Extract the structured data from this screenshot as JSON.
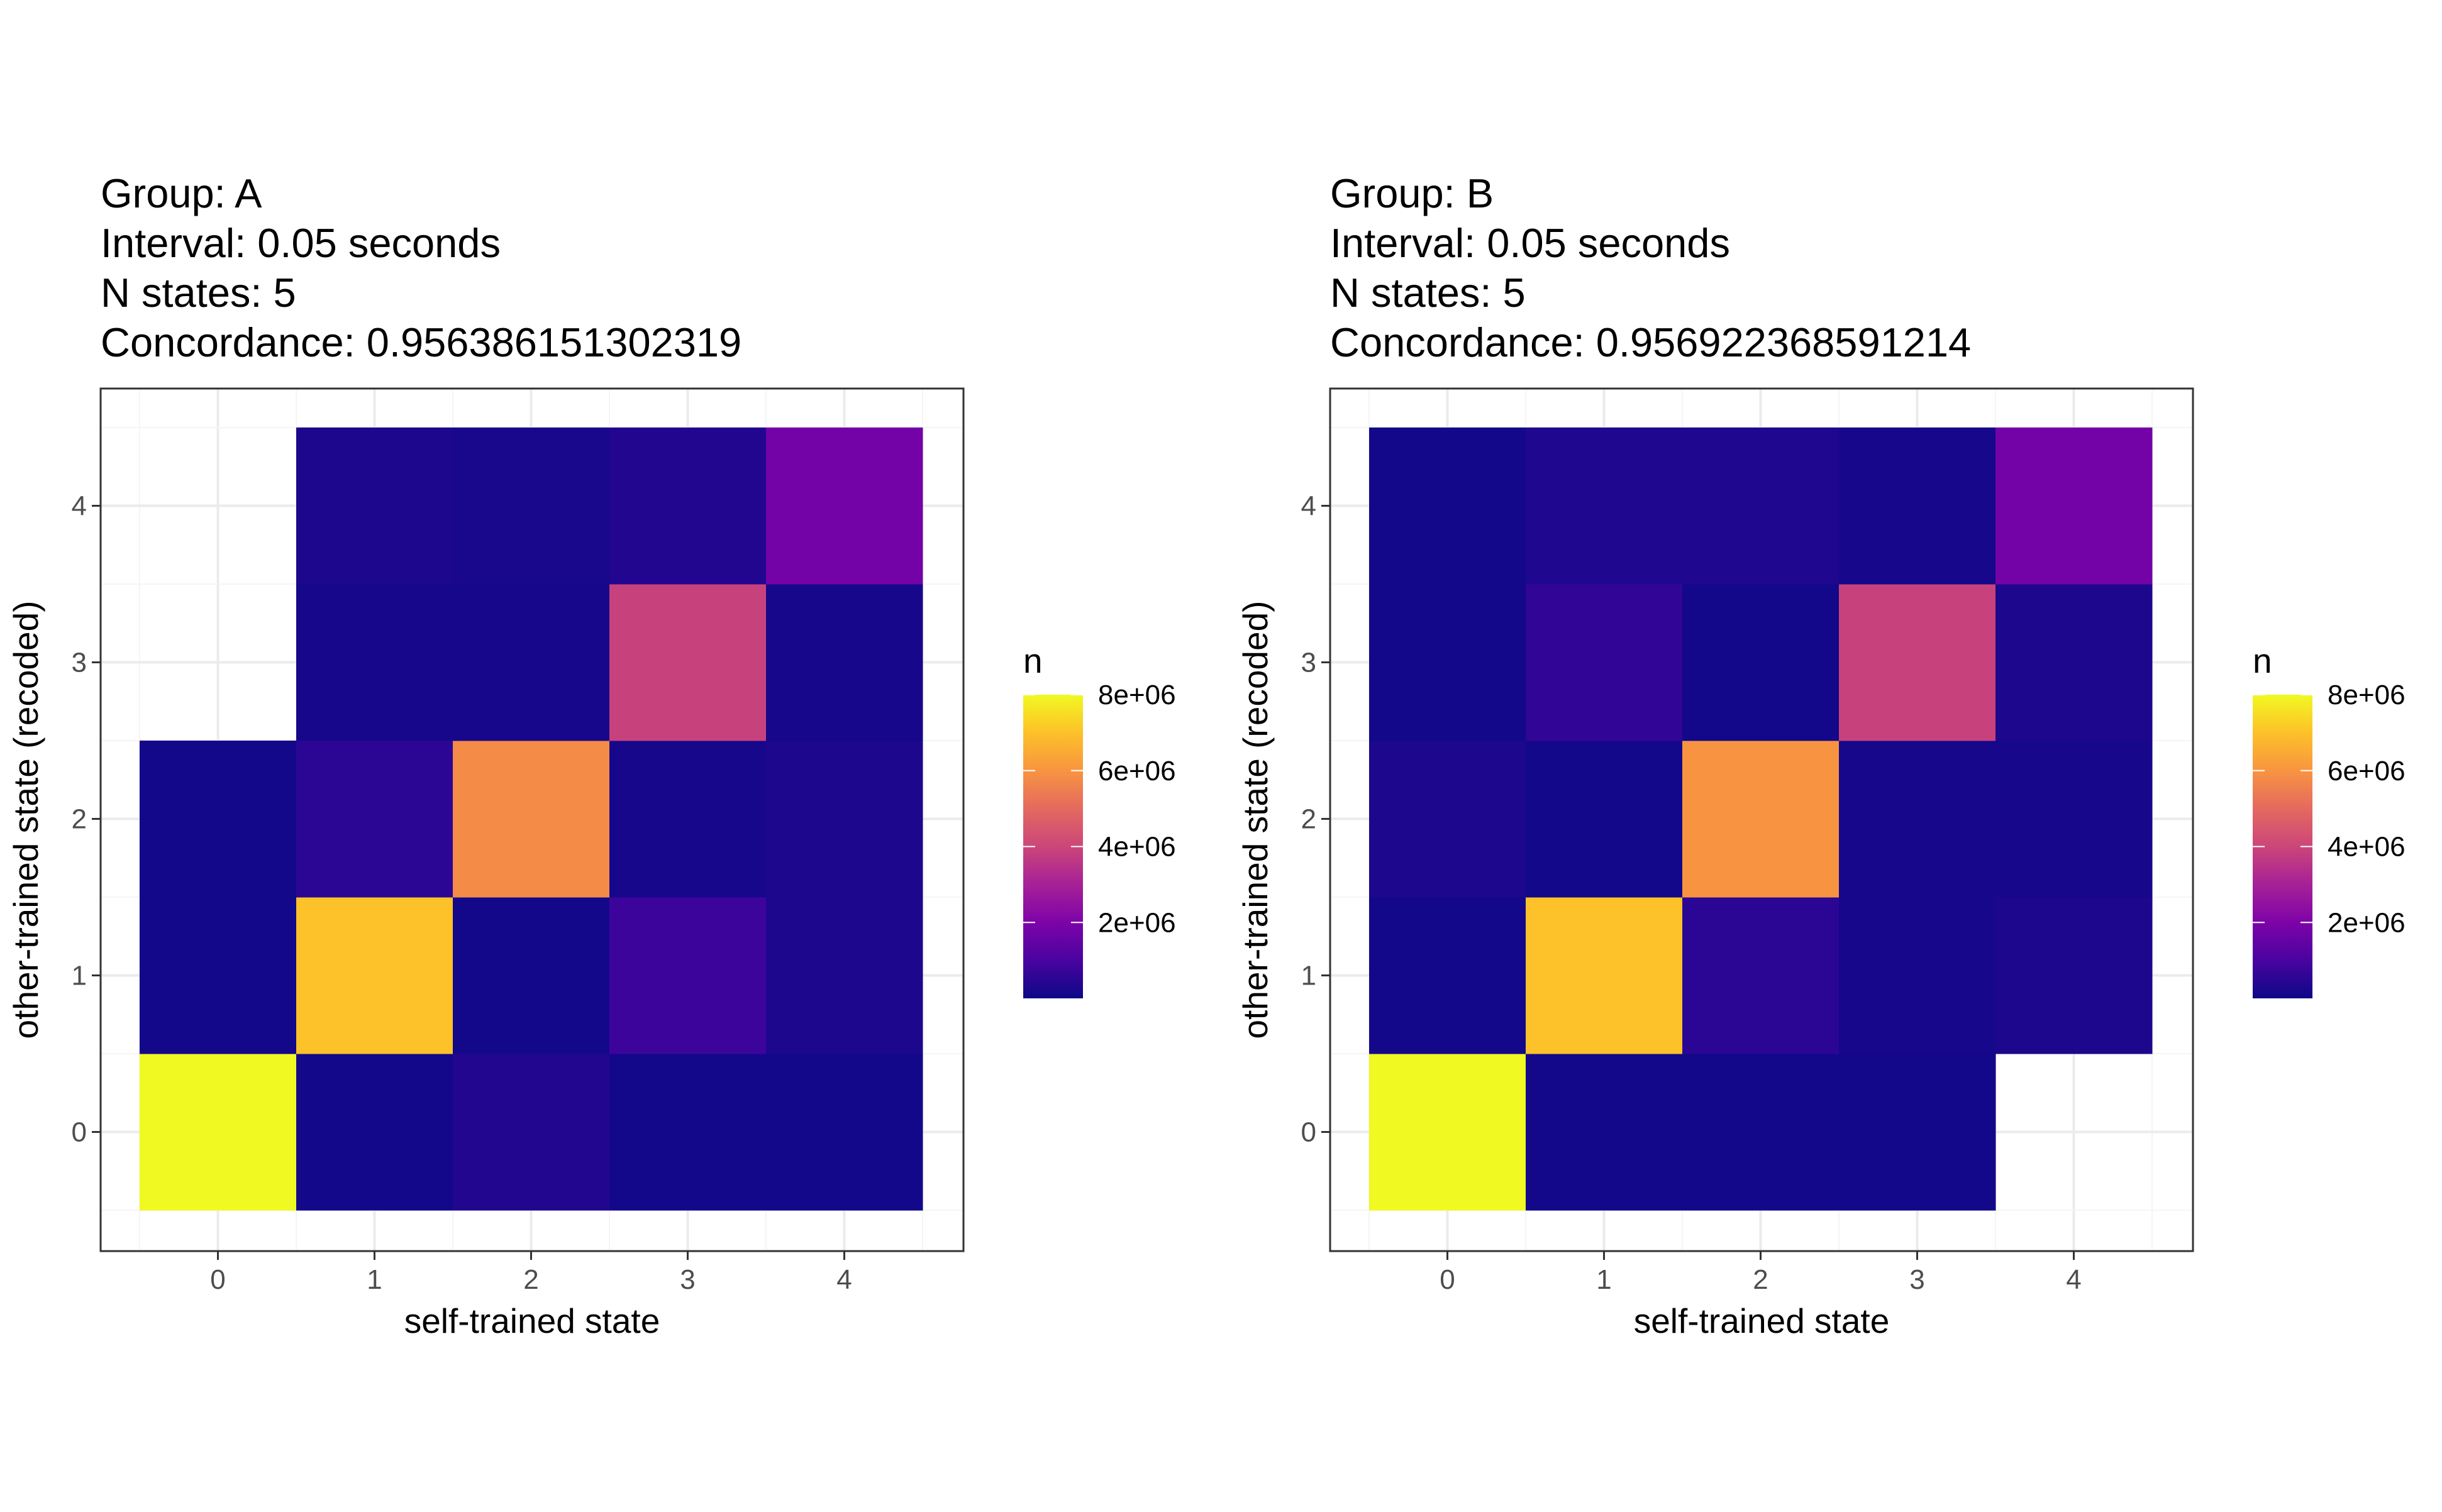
{
  "chart_data": [
    {
      "type": "heatmap",
      "title_lines": [
        "Group: A",
        "Interval: 0.05 seconds",
        "N states: 5",
        "Concordance: 0.956386151302319"
      ],
      "xlabel": "self-trained state",
      "ylabel": "other-trained state (recoded)",
      "x_categories": [
        "0",
        "1",
        "2",
        "3",
        "4"
      ],
      "y_categories": [
        "0",
        "1",
        "2",
        "3",
        "4"
      ],
      "cells": [
        {
          "x": 0,
          "y": 0,
          "n": 8000000
        },
        {
          "x": 0,
          "y": 1,
          "n": 100000
        },
        {
          "x": 0,
          "y": 2,
          "n": 100000
        },
        {
          "x": 1,
          "y": 0,
          "n": 100000
        },
        {
          "x": 1,
          "y": 1,
          "n": 7000000
        },
        {
          "x": 1,
          "y": 2,
          "n": 500000
        },
        {
          "x": 1,
          "y": 3,
          "n": 150000
        },
        {
          "x": 1,
          "y": 4,
          "n": 250000
        },
        {
          "x": 2,
          "y": 0,
          "n": 350000
        },
        {
          "x": 2,
          "y": 1,
          "n": 100000
        },
        {
          "x": 2,
          "y": 2,
          "n": 5800000
        },
        {
          "x": 2,
          "y": 3,
          "n": 150000
        },
        {
          "x": 2,
          "y": 4,
          "n": 200000
        },
        {
          "x": 3,
          "y": 0,
          "n": 100000
        },
        {
          "x": 3,
          "y": 1,
          "n": 800000
        },
        {
          "x": 3,
          "y": 2,
          "n": 150000
        },
        {
          "x": 3,
          "y": 3,
          "n": 3900000
        },
        {
          "x": 3,
          "y": 4,
          "n": 350000
        },
        {
          "x": 4,
          "y": 0,
          "n": 100000
        },
        {
          "x": 4,
          "y": 1,
          "n": 250000
        },
        {
          "x": 4,
          "y": 2,
          "n": 250000
        },
        {
          "x": 4,
          "y": 3,
          "n": 150000
        },
        {
          "x": 4,
          "y": 4,
          "n": 1800000
        }
      ],
      "legend": {
        "title": "n",
        "labels": [
          "2e+06",
          "4e+06",
          "6e+06",
          "8e+06"
        ],
        "values": [
          2000000,
          4000000,
          6000000,
          8000000
        ],
        "range": [
          0,
          8000000
        ],
        "placement": "right"
      },
      "colormap": "plasma",
      "grid": true
    },
    {
      "type": "heatmap",
      "title_lines": [
        "Group: B",
        "Interval: 0.05 seconds",
        "N states: 5",
        "Concordance: 0.956922368591214"
      ],
      "xlabel": "self-trained state",
      "ylabel": "other-trained state (recoded)",
      "x_categories": [
        "0",
        "1",
        "2",
        "3",
        "4"
      ],
      "y_categories": [
        "0",
        "1",
        "2",
        "3",
        "4"
      ],
      "cells": [
        {
          "x": 0,
          "y": 0,
          "n": 8000000
        },
        {
          "x": 0,
          "y": 1,
          "n": 100000
        },
        {
          "x": 0,
          "y": 2,
          "n": 250000
        },
        {
          "x": 0,
          "y": 3,
          "n": 100000
        },
        {
          "x": 0,
          "y": 4,
          "n": 100000
        },
        {
          "x": 1,
          "y": 0,
          "n": 100000
        },
        {
          "x": 1,
          "y": 1,
          "n": 7000000
        },
        {
          "x": 1,
          "y": 2,
          "n": 100000
        },
        {
          "x": 1,
          "y": 3,
          "n": 600000
        },
        {
          "x": 1,
          "y": 4,
          "n": 300000
        },
        {
          "x": 2,
          "y": 0,
          "n": 100000
        },
        {
          "x": 2,
          "y": 1,
          "n": 500000
        },
        {
          "x": 2,
          "y": 2,
          "n": 6000000
        },
        {
          "x": 2,
          "y": 3,
          "n": 100000
        },
        {
          "x": 2,
          "y": 4,
          "n": 300000
        },
        {
          "x": 3,
          "y": 0,
          "n": 100000
        },
        {
          "x": 3,
          "y": 1,
          "n": 150000
        },
        {
          "x": 3,
          "y": 2,
          "n": 150000
        },
        {
          "x": 3,
          "y": 3,
          "n": 3900000
        },
        {
          "x": 3,
          "y": 4,
          "n": 150000
        },
        {
          "x": 4,
          "y": 1,
          "n": 250000
        },
        {
          "x": 4,
          "y": 2,
          "n": 150000
        },
        {
          "x": 4,
          "y": 3,
          "n": 250000
        },
        {
          "x": 4,
          "y": 4,
          "n": 1800000
        }
      ],
      "legend": {
        "title": "n",
        "labels": [
          "2e+06",
          "4e+06",
          "6e+06",
          "8e+06"
        ],
        "values": [
          2000000,
          4000000,
          6000000,
          8000000
        ],
        "range": [
          0,
          8000000
        ],
        "placement": "right"
      },
      "colormap": "plasma",
      "grid": true
    }
  ]
}
